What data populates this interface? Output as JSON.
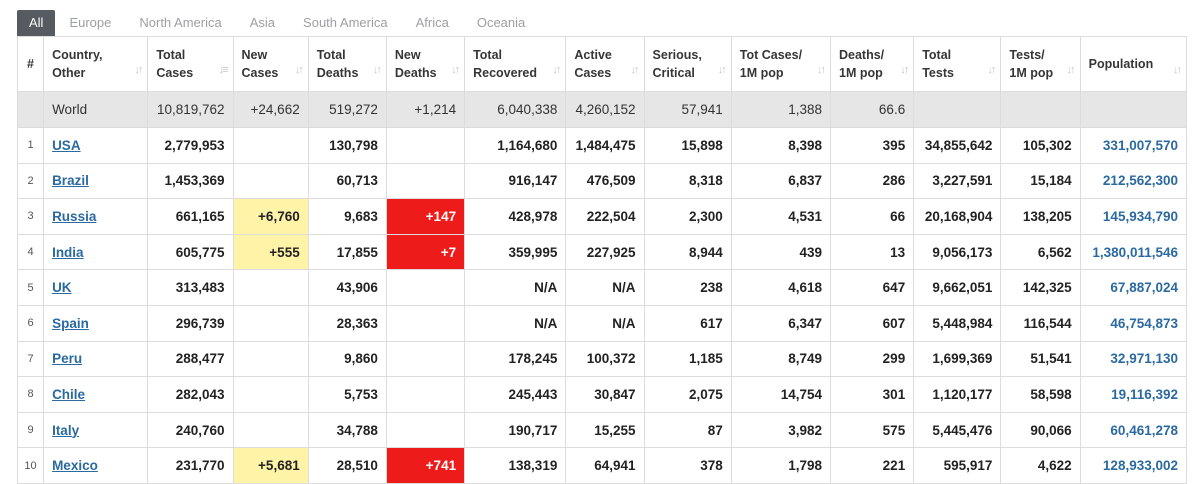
{
  "tabs": [
    "All",
    "Europe",
    "North America",
    "Asia",
    "South America",
    "Africa",
    "Oceania"
  ],
  "active_tab": "All",
  "columns": [
    {
      "l1": "#",
      "l2": ""
    },
    {
      "l1": "Country,",
      "l2": "Other"
    },
    {
      "l1": "Total",
      "l2": "Cases"
    },
    {
      "l1": "New",
      "l2": "Cases"
    },
    {
      "l1": "Total",
      "l2": "Deaths"
    },
    {
      "l1": "New",
      "l2": "Deaths"
    },
    {
      "l1": "Total",
      "l2": "Recovered"
    },
    {
      "l1": "Active",
      "l2": "Cases"
    },
    {
      "l1": "Serious,",
      "l2": "Critical"
    },
    {
      "l1": "Tot Cases/",
      "l2": "1M pop"
    },
    {
      "l1": "Deaths/",
      "l2": "1M pop"
    },
    {
      "l1": "Total",
      "l2": "Tests"
    },
    {
      "l1": "Tests/",
      "l2": "1M pop"
    },
    {
      "l1": "Population",
      "l2": ""
    }
  ],
  "world": {
    "name": "World",
    "total_cases": "10,819,762",
    "new_cases": "+24,662",
    "total_deaths": "519,272",
    "new_deaths": "+1,214",
    "total_recovered": "6,040,338",
    "active_cases": "4,260,152",
    "serious_critical": "57,941",
    "cases_per_1m": "1,388",
    "deaths_per_1m": "66.6",
    "total_tests": "",
    "tests_per_1m": "",
    "population": ""
  },
  "rows": [
    {
      "rank": "1",
      "country": "USA",
      "total_cases": "2,779,953",
      "new_cases": "",
      "total_deaths": "130,798",
      "new_deaths": "",
      "total_recovered": "1,164,680",
      "active_cases": "1,484,475",
      "serious_critical": "15,898",
      "cases_per_1m": "8,398",
      "deaths_per_1m": "395",
      "total_tests": "34,855,642",
      "tests_per_1m": "105,302",
      "population": "331,007,570"
    },
    {
      "rank": "2",
      "country": "Brazil",
      "total_cases": "1,453,369",
      "new_cases": "",
      "total_deaths": "60,713",
      "new_deaths": "",
      "total_recovered": "916,147",
      "active_cases": "476,509",
      "serious_critical": "8,318",
      "cases_per_1m": "6,837",
      "deaths_per_1m": "286",
      "total_tests": "3,227,591",
      "tests_per_1m": "15,184",
      "population": "212,562,300"
    },
    {
      "rank": "3",
      "country": "Russia",
      "total_cases": "661,165",
      "new_cases": "+6,760",
      "total_deaths": "9,683",
      "new_deaths": "+147",
      "total_recovered": "428,978",
      "active_cases": "222,504",
      "serious_critical": "2,300",
      "cases_per_1m": "4,531",
      "deaths_per_1m": "66",
      "total_tests": "20,168,904",
      "tests_per_1m": "138,205",
      "population": "145,934,790"
    },
    {
      "rank": "4",
      "country": "India",
      "total_cases": "605,775",
      "new_cases": "+555",
      "total_deaths": "17,855",
      "new_deaths": "+7",
      "total_recovered": "359,995",
      "active_cases": "227,925",
      "serious_critical": "8,944",
      "cases_per_1m": "439",
      "deaths_per_1m": "13",
      "total_tests": "9,056,173",
      "tests_per_1m": "6,562",
      "population": "1,380,011,546"
    },
    {
      "rank": "5",
      "country": "UK",
      "total_cases": "313,483",
      "new_cases": "",
      "total_deaths": "43,906",
      "new_deaths": "",
      "total_recovered": "N/A",
      "active_cases": "N/A",
      "serious_critical": "238",
      "cases_per_1m": "4,618",
      "deaths_per_1m": "647",
      "total_tests": "9,662,051",
      "tests_per_1m": "142,325",
      "population": "67,887,024"
    },
    {
      "rank": "6",
      "country": "Spain",
      "total_cases": "296,739",
      "new_cases": "",
      "total_deaths": "28,363",
      "new_deaths": "",
      "total_recovered": "N/A",
      "active_cases": "N/A",
      "serious_critical": "617",
      "cases_per_1m": "6,347",
      "deaths_per_1m": "607",
      "total_tests": "5,448,984",
      "tests_per_1m": "116,544",
      "population": "46,754,873"
    },
    {
      "rank": "7",
      "country": "Peru",
      "total_cases": "288,477",
      "new_cases": "",
      "total_deaths": "9,860",
      "new_deaths": "",
      "total_recovered": "178,245",
      "active_cases": "100,372",
      "serious_critical": "1,185",
      "cases_per_1m": "8,749",
      "deaths_per_1m": "299",
      "total_tests": "1,699,369",
      "tests_per_1m": "51,541",
      "population": "32,971,130"
    },
    {
      "rank": "8",
      "country": "Chile",
      "total_cases": "282,043",
      "new_cases": "",
      "total_deaths": "5,753",
      "new_deaths": "",
      "total_recovered": "245,443",
      "active_cases": "30,847",
      "serious_critical": "2,075",
      "cases_per_1m": "14,754",
      "deaths_per_1m": "301",
      "total_tests": "1,120,177",
      "tests_per_1m": "58,598",
      "population": "19,116,392"
    },
    {
      "rank": "9",
      "country": "Italy",
      "total_cases": "240,760",
      "new_cases": "",
      "total_deaths": "34,788",
      "new_deaths": "",
      "total_recovered": "190,717",
      "active_cases": "15,255",
      "serious_critical": "87",
      "cases_per_1m": "3,982",
      "deaths_per_1m": "575",
      "total_tests": "5,445,476",
      "tests_per_1m": "90,066",
      "population": "60,461,278"
    },
    {
      "rank": "10",
      "country": "Mexico",
      "total_cases": "231,770",
      "new_cases": "+5,681",
      "total_deaths": "28,510",
      "new_deaths": "+741",
      "total_recovered": "138,319",
      "active_cases": "64,941",
      "serious_critical": "378",
      "cases_per_1m": "1,798",
      "deaths_per_1m": "221",
      "total_tests": "595,917",
      "tests_per_1m": "4,622",
      "population": "128,933,002"
    }
  ],
  "colors": {
    "tab_active_bg": "#555b61",
    "world_row_bg": "#e6e6e6",
    "new_cases_highlight": "#fff3a8",
    "new_deaths_highlight": "#ee1b1b",
    "link": "#2b6aa0"
  },
  "icons": {
    "sort": "sort-arrows-icon"
  }
}
